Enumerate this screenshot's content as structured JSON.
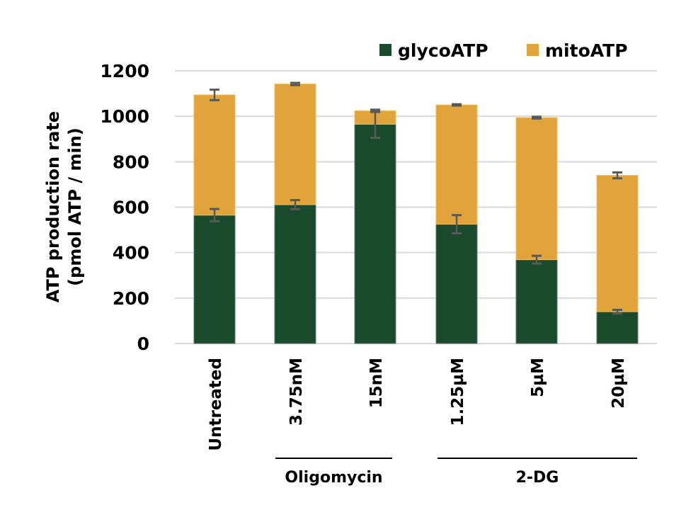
{
  "chart_data": {
    "type": "bar",
    "stacked": true,
    "title": "",
    "xlabel": "",
    "ylabel": "ATP production rate",
    "ylabel_line2": "(pmol ATP / min)",
    "ylim": [
      0,
      1200
    ],
    "yticks": [
      0,
      200,
      400,
      600,
      800,
      1000,
      1200
    ],
    "ytick_labels": [
      "0",
      "200",
      "400",
      "600",
      "800",
      "1000",
      "1200"
    ],
    "grid": true,
    "legend_position": "top-right",
    "categories": [
      "Untreated",
      "3.75nM",
      "15nM",
      "1.25µM",
      "5µM",
      "20µM"
    ],
    "groups": [
      {
        "label": "Oligomycin",
        "categories": [
          "3.75nM",
          "15nM"
        ]
      },
      {
        "label": "2-DG",
        "categories": [
          "1.25µM",
          "5µM",
          "20µM"
        ]
      }
    ],
    "series": [
      {
        "name": "glycoATP",
        "color": "#1a4a2c",
        "values": [
          565,
          611,
          965,
          525,
          369,
          140
        ],
        "errors": [
          27,
          20,
          60,
          40,
          17,
          8
        ]
      },
      {
        "name": "mitoATP",
        "color": "#e0a43a",
        "values": [
          529,
          531,
          59,
          525,
          625,
          600
        ],
        "errors": [
          23,
          5,
          5,
          3,
          4,
          13
        ]
      }
    ]
  },
  "colors": {
    "grid": "#d9d9d9",
    "error_bar": "#595959",
    "glyco": "#1a4a2c",
    "mito": "#e0a43a"
  }
}
